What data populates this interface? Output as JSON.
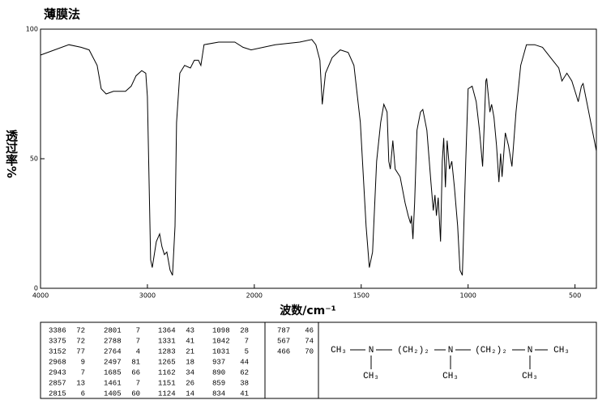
{
  "chart_data": {
    "type": "line",
    "title": "薄膜法",
    "xlabel": "波数/cm⁻¹",
    "ylabel": "透过率%",
    "xlim": [
      4000,
      400
    ],
    "x_scale_break": 2000,
    "ylim": [
      0,
      100
    ],
    "xticks": [
      4000,
      3000,
      2000,
      1500,
      1000,
      500
    ],
    "yticks": [
      0,
      50,
      100
    ],
    "color": "#000000",
    "x": [
      4000,
      3735,
      3621,
      3545,
      3470,
      3432,
      3386,
      3318,
      3205,
      3152,
      3106,
      3053,
      3015,
      3000,
      2970,
      2955,
      2917,
      2886,
      2864,
      2841,
      2818,
      2788,
      2765,
      2742,
      2727,
      2697,
      2652,
      2598,
      2561,
      2523,
      2500,
      2470,
      2333,
      2182,
      2106,
      2030,
      1902,
      1788,
      1731,
      1712,
      1693,
      1682,
      1667,
      1636,
      1598,
      1561,
      1534,
      1504,
      1477,
      1462,
      1447,
      1428,
      1409,
      1394,
      1379,
      1371,
      1364,
      1352,
      1341,
      1318,
      1295,
      1280,
      1269,
      1265,
      1258,
      1250,
      1239,
      1223,
      1212,
      1193,
      1174,
      1163,
      1155,
      1148,
      1140,
      1129,
      1121,
      1114,
      1106,
      1098,
      1087,
      1076,
      1064,
      1049,
      1038,
      1027,
      1011,
      1000,
      981,
      962,
      947,
      932,
      924,
      917,
      913,
      898,
      890,
      879,
      867,
      856,
      848,
      841,
      826,
      811,
      795,
      776,
      754,
      727,
      689,
      652,
      614,
      576,
      561,
      538,
      515,
      496,
      485,
      470,
      462,
      443,
      400
    ],
    "values": [
      90,
      94,
      93,
      92,
      86,
      77,
      75,
      76,
      76,
      78,
      82,
      84,
      83,
      74,
      11,
      8,
      18,
      21,
      16,
      13,
      14,
      7,
      5,
      24,
      64,
      83,
      86,
      85,
      88,
      88,
      86,
      94,
      95,
      95,
      93,
      92,
      94,
      95,
      96,
      94,
      88,
      71,
      83,
      89,
      92,
      91,
      86,
      64,
      24,
      8,
      14,
      49,
      64,
      71,
      68,
      49,
      46,
      57,
      46,
      43,
      33,
      28,
      25,
      28,
      19,
      33,
      61,
      68,
      69,
      61,
      41,
      30,
      36,
      28,
      35,
      18,
      49,
      58,
      39,
      57,
      46,
      49,
      39,
      24,
      7,
      5,
      49,
      77,
      78,
      72,
      61,
      47,
      64,
      80,
      81,
      68,
      71,
      66,
      55,
      41,
      52,
      43,
      60,
      55,
      47,
      68,
      86,
      94,
      94,
      93,
      89,
      85,
      80,
      83,
      80,
      75,
      72,
      78,
      79,
      71,
      53
    ]
  },
  "peak_table": [
    [
      [
        3386,
        72
      ],
      [
        3375,
        72
      ],
      [
        3152,
        77
      ],
      [
        2968,
        9
      ],
      [
        2943,
        7
      ],
      [
        2857,
        13
      ],
      [
        2815,
        6
      ]
    ],
    [
      [
        2801,
        7
      ],
      [
        2788,
        7
      ],
      [
        2764,
        4
      ],
      [
        2497,
        81
      ],
      [
        1685,
        66
      ],
      [
        1461,
        7
      ],
      [
        1405,
        60
      ]
    ],
    [
      [
        1364,
        43
      ],
      [
        1331,
        41
      ],
      [
        1283,
        21
      ],
      [
        1265,
        18
      ],
      [
        1162,
        34
      ],
      [
        1151,
        26
      ],
      [
        1124,
        14
      ]
    ],
    [
      [
        1098,
        28
      ],
      [
        1042,
        7
      ],
      [
        1031,
        5
      ],
      [
        937,
        44
      ],
      [
        890,
        62
      ],
      [
        859,
        38
      ],
      [
        834,
        41
      ]
    ],
    [
      [
        787,
        46
      ],
      [
        567,
        74
      ],
      [
        466,
        70
      ]
    ]
  ],
  "structure": {
    "chain": [
      "CH₃",
      "N",
      "(CH₂)₂",
      "N",
      "(CH₂)₂",
      "N",
      "CH₃"
    ],
    "branches": [
      "CH₃",
      "CH₃",
      "CH₃"
    ]
  }
}
